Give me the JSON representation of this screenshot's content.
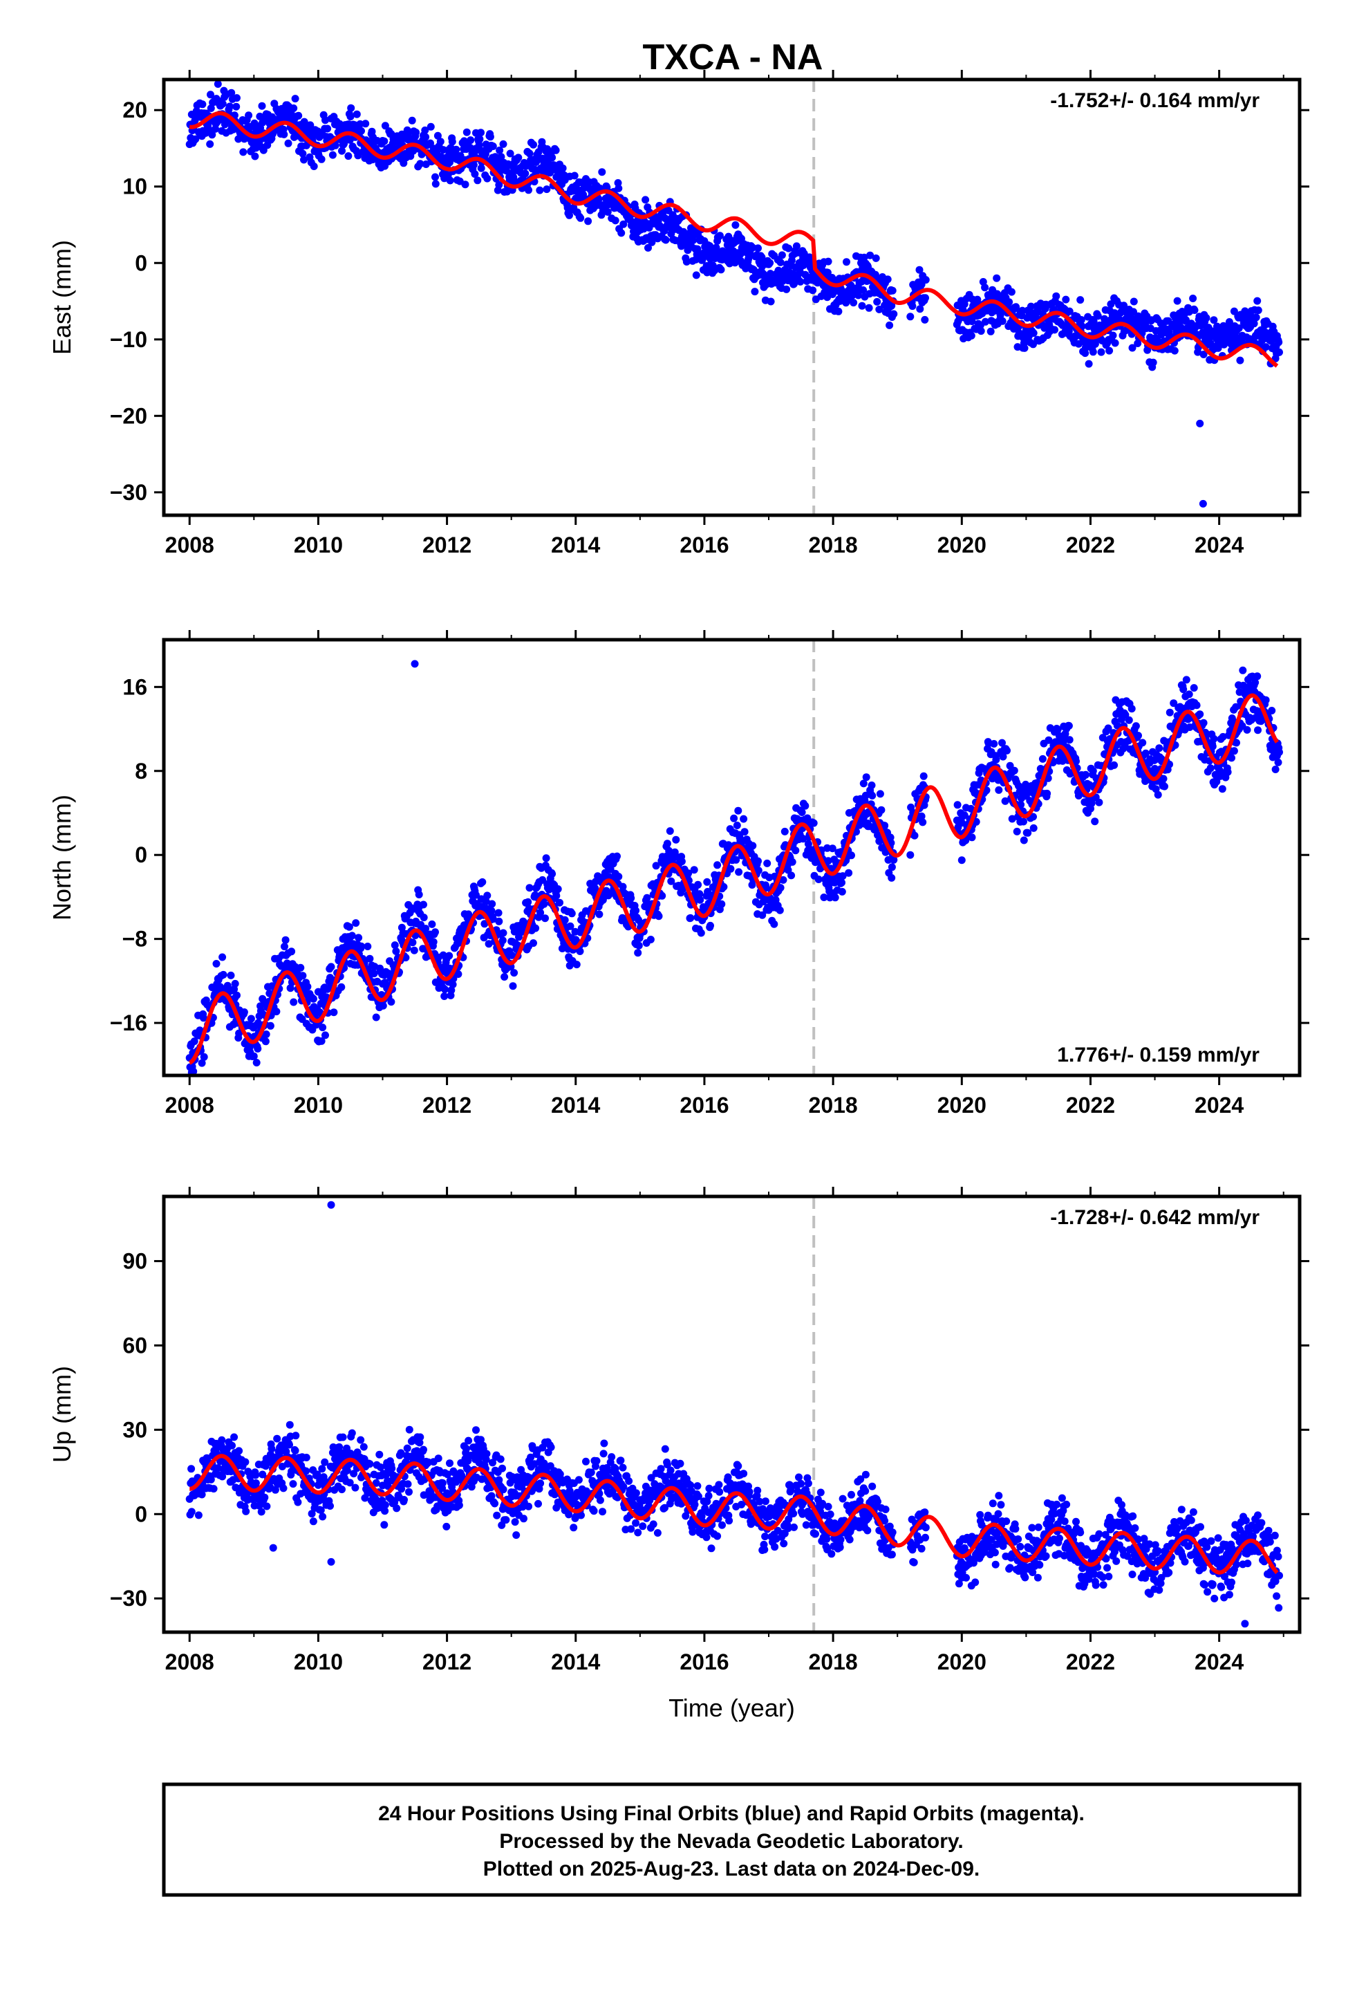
{
  "title": "TXCA - NA",
  "footer": {
    "lines": [
      "24 Hour Positions Using Final Orbits (blue) and Rapid Orbits (magenta).",
      "Processed by the Nevada Geodetic Laboratory.",
      "Plotted on 2025-Aug-23. Last data on 2024-Dec-09."
    ]
  },
  "colors": {
    "data": "#0000ff",
    "model": "#ff0000",
    "event_line": "#c0c0c0"
  },
  "event_year": 2017.7,
  "chart_data": [
    {
      "type": "scatter",
      "ylabel": "East (mm)",
      "xlabel": "",
      "xlim": [
        2007.6,
        2025.25
      ],
      "ylim": [
        -33,
        24
      ],
      "yticks": [
        20,
        10,
        0,
        -10,
        -20,
        -30
      ],
      "ytick_labels": [
        "20",
        "10",
        "0",
        "−10",
        "−20",
        "−30"
      ],
      "xticks": [
        2008,
        2010,
        2012,
        2014,
        2016,
        2018,
        2020,
        2022,
        2024
      ],
      "xtick_labels": [
        "2008",
        "2010",
        "2012",
        "2014",
        "2016",
        "2018",
        "2020",
        "2022",
        "2024"
      ],
      "rate": "-1.752+/- 0.164 mm/yr",
      "rate_position": "top-right",
      "trend_anchors": [
        [
          2008.0,
          19.0
        ],
        [
          2010.0,
          17.0
        ],
        [
          2012.0,
          14.0
        ],
        [
          2013.5,
          12.0
        ],
        [
          2014.5,
          7.5
        ],
        [
          2016.0,
          2.0
        ],
        [
          2017.7,
          -2.0
        ],
        [
          2019.0,
          -4.0
        ],
        [
          2020.0,
          -6.0
        ],
        [
          2022.0,
          -8.5
        ],
        [
          2024.9,
          -9.5
        ]
      ],
      "model_anchors": [
        [
          2008.0,
          19.0
        ],
        [
          2010.0,
          16.5
        ],
        [
          2012.0,
          13.5
        ],
        [
          2014.0,
          9.0
        ],
        [
          2016.0,
          5.5
        ],
        [
          2017.69,
          2.5
        ],
        [
          2017.72,
          -1.0
        ],
        [
          2019.0,
          -4.0
        ],
        [
          2020.0,
          -5.5
        ],
        [
          2022.0,
          -8.5
        ],
        [
          2024.9,
          -12.5
        ]
      ],
      "seasonal_amplitude": 1.2,
      "noise": 1.5,
      "outliers": [
        [
          2023.7,
          -21.0
        ],
        [
          2023.75,
          -31.5
        ]
      ]
    },
    {
      "type": "scatter",
      "ylabel": "North (mm)",
      "xlabel": "",
      "xlim": [
        2007.6,
        2025.25
      ],
      "ylim": [
        -21,
        20.5
      ],
      "yticks": [
        16,
        8,
        0,
        -8,
        -16
      ],
      "ytick_labels": [
        "16",
        "8",
        "0",
        "−8",
        "−16"
      ],
      "xticks": [
        2008,
        2010,
        2012,
        2014,
        2016,
        2018,
        2020,
        2022,
        2024
      ],
      "xtick_labels": [
        "2008",
        "2010",
        "2012",
        "2014",
        "2016",
        "2018",
        "2020",
        "2022",
        "2024"
      ],
      "rate": "1.776+/- 0.159 mm/yr",
      "rate_position": "bottom-right",
      "trend_anchors": [
        [
          2008.0,
          -16.5
        ],
        [
          2010.0,
          -12.5
        ],
        [
          2012.0,
          -8.5
        ],
        [
          2014.0,
          -5.5
        ],
        [
          2016.0,
          -2.5
        ],
        [
          2017.7,
          0.0
        ],
        [
          2020.0,
          5.0
        ],
        [
          2022.0,
          9.0
        ],
        [
          2024.9,
          13.0
        ]
      ],
      "model_anchors": [
        [
          2008.0,
          -17.0
        ],
        [
          2010.0,
          -13.0
        ],
        [
          2012.0,
          -9.0
        ],
        [
          2014.0,
          -6.0
        ],
        [
          2016.0,
          -3.0
        ],
        [
          2017.7,
          0.5
        ],
        [
          2020.0,
          4.5
        ],
        [
          2022.0,
          8.5
        ],
        [
          2024.9,
          13.0
        ]
      ],
      "seasonal_amplitude": 2.8,
      "noise": 1.3,
      "outliers": [
        [
          2011.5,
          18.2
        ],
        [
          2020.0,
          -0.5
        ]
      ]
    },
    {
      "type": "scatter",
      "ylabel": "Up (mm)",
      "xlabel": "Time (year)",
      "xlim": [
        2007.6,
        2025.25
      ],
      "ylim": [
        -42,
        113
      ],
      "yticks": [
        90,
        60,
        30,
        0,
        -30
      ],
      "ytick_labels": [
        "90",
        "60",
        "30",
        "0",
        "−30"
      ],
      "xticks": [
        2008,
        2010,
        2012,
        2014,
        2016,
        2018,
        2020,
        2022,
        2024
      ],
      "xtick_labels": [
        "2008",
        "2010",
        "2012",
        "2014",
        "2016",
        "2018",
        "2020",
        "2022",
        "2024"
      ],
      "rate": "-1.728+/- 0.642 mm/yr",
      "rate_position": "top-right",
      "trend_anchors": [
        [
          2008.0,
          14.0
        ],
        [
          2011.0,
          14.0
        ],
        [
          2014.0,
          10.0
        ],
        [
          2016.0,
          4.0
        ],
        [
          2017.7,
          0.0
        ],
        [
          2020.0,
          -11.0
        ],
        [
          2022.0,
          -12.0
        ],
        [
          2024.9,
          -15.0
        ]
      ],
      "model_anchors": [
        [
          2008.0,
          15.0
        ],
        [
          2011.0,
          13.0
        ],
        [
          2014.0,
          7.0
        ],
        [
          2016.0,
          2.0
        ],
        [
          2017.7,
          0.0
        ],
        [
          2020.0,
          -9.0
        ],
        [
          2022.0,
          -12.0
        ],
        [
          2024.9,
          -16.0
        ]
      ],
      "seasonal_amplitude": 6.0,
      "noise": 5.0,
      "outliers": [
        [
          2010.2,
          110.0
        ],
        [
          2010.2,
          -17.0
        ],
        [
          2009.3,
          -12.0
        ],
        [
          2024.4,
          -39.0
        ]
      ]
    }
  ]
}
